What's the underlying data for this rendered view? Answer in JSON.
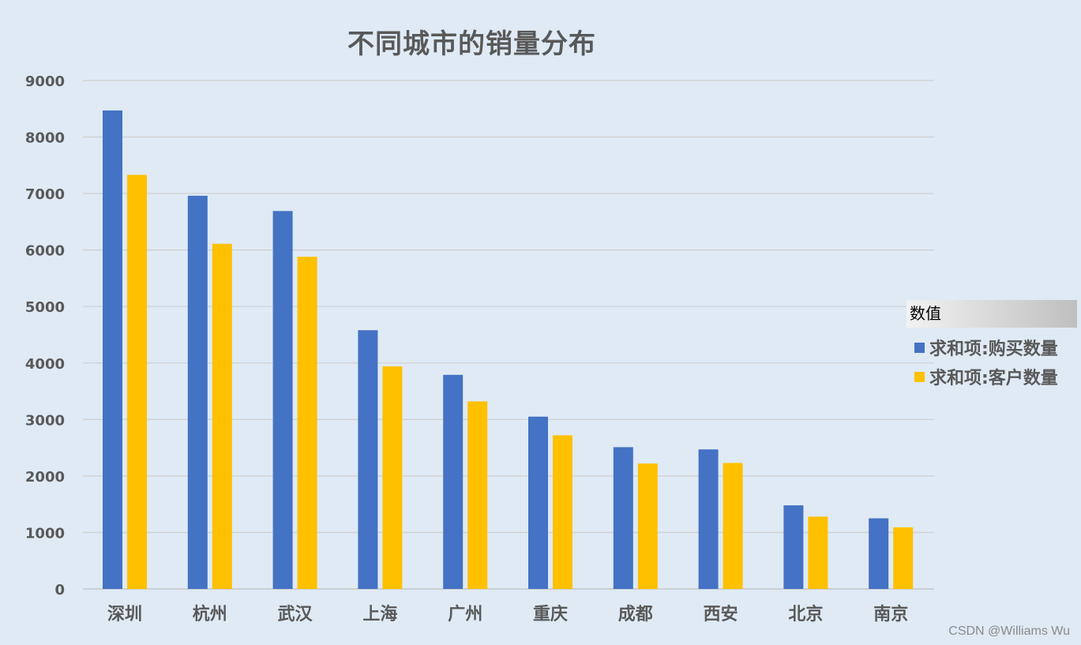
{
  "chart_data": {
    "type": "bar",
    "title": "不同城市的销量分布",
    "xlabel": "",
    "ylabel": "",
    "categories": [
      "深圳",
      "杭州",
      "武汉",
      "上海",
      "广州",
      "重庆",
      "成都",
      "西安",
      "北京",
      "南京"
    ],
    "series": [
      {
        "name": "求和项:购买数量",
        "color": "#4472c4",
        "values": [
          8470,
          6960,
          6690,
          4580,
          3790,
          3050,
          2510,
          2470,
          1480,
          1250
        ]
      },
      {
        "name": "求和项:客户数量",
        "color": "#ffc000",
        "values": [
          7330,
          6110,
          5880,
          3940,
          3320,
          2720,
          2220,
          2230,
          1280,
          1090
        ]
      }
    ],
    "ylim": [
      0,
      9000
    ],
    "yticks": [
      0,
      1000,
      2000,
      3000,
      4000,
      5000,
      6000,
      7000,
      8000,
      9000
    ],
    "grid": true,
    "legend": {
      "title": "数值",
      "placement": "right"
    }
  },
  "watermark": "CSDN @Williams Wu"
}
